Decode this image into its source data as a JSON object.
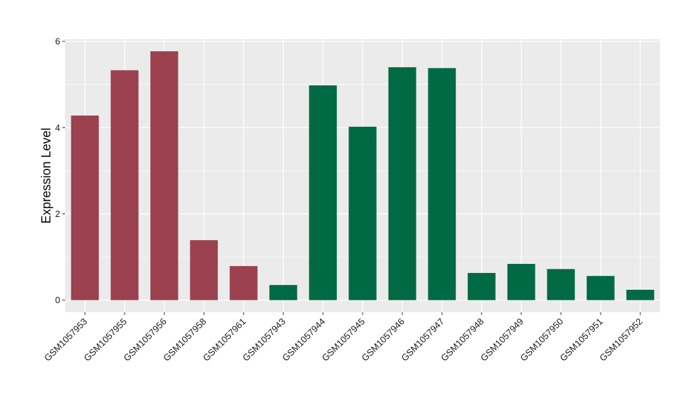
{
  "chart_data": {
    "type": "bar",
    "title": "",
    "xlabel": "",
    "ylabel": "Expression Level",
    "ylim": [
      -0.28,
      6.05
    ],
    "yticks": [
      0,
      2,
      4,
      6
    ],
    "grid": true,
    "legend": "none",
    "background_color": "#ebebeb",
    "grid_color": "#ffffff",
    "categories": [
      "GSM1057953",
      "GSM1057955",
      "GSM1057956",
      "GSM1057958",
      "GSM1057961",
      "GSM1057943",
      "GSM1057944",
      "GSM1057945",
      "GSM1057946",
      "GSM1057947",
      "GSM1057948",
      "GSM1057949",
      "GSM1057950",
      "GSM1057951",
      "GSM1057952"
    ],
    "values": [
      4.28,
      5.33,
      5.77,
      1.39,
      0.79,
      0.35,
      4.98,
      4.02,
      5.4,
      5.38,
      0.63,
      0.84,
      0.72,
      0.56,
      0.24
    ],
    "group_colors": {
      "group1": "#9b4150",
      "group2": "#006a44"
    },
    "bar_groups": [
      "group1",
      "group1",
      "group1",
      "group1",
      "group1",
      "group2",
      "group2",
      "group2",
      "group2",
      "group2",
      "group2",
      "group2",
      "group2",
      "group2",
      "group2"
    ]
  }
}
